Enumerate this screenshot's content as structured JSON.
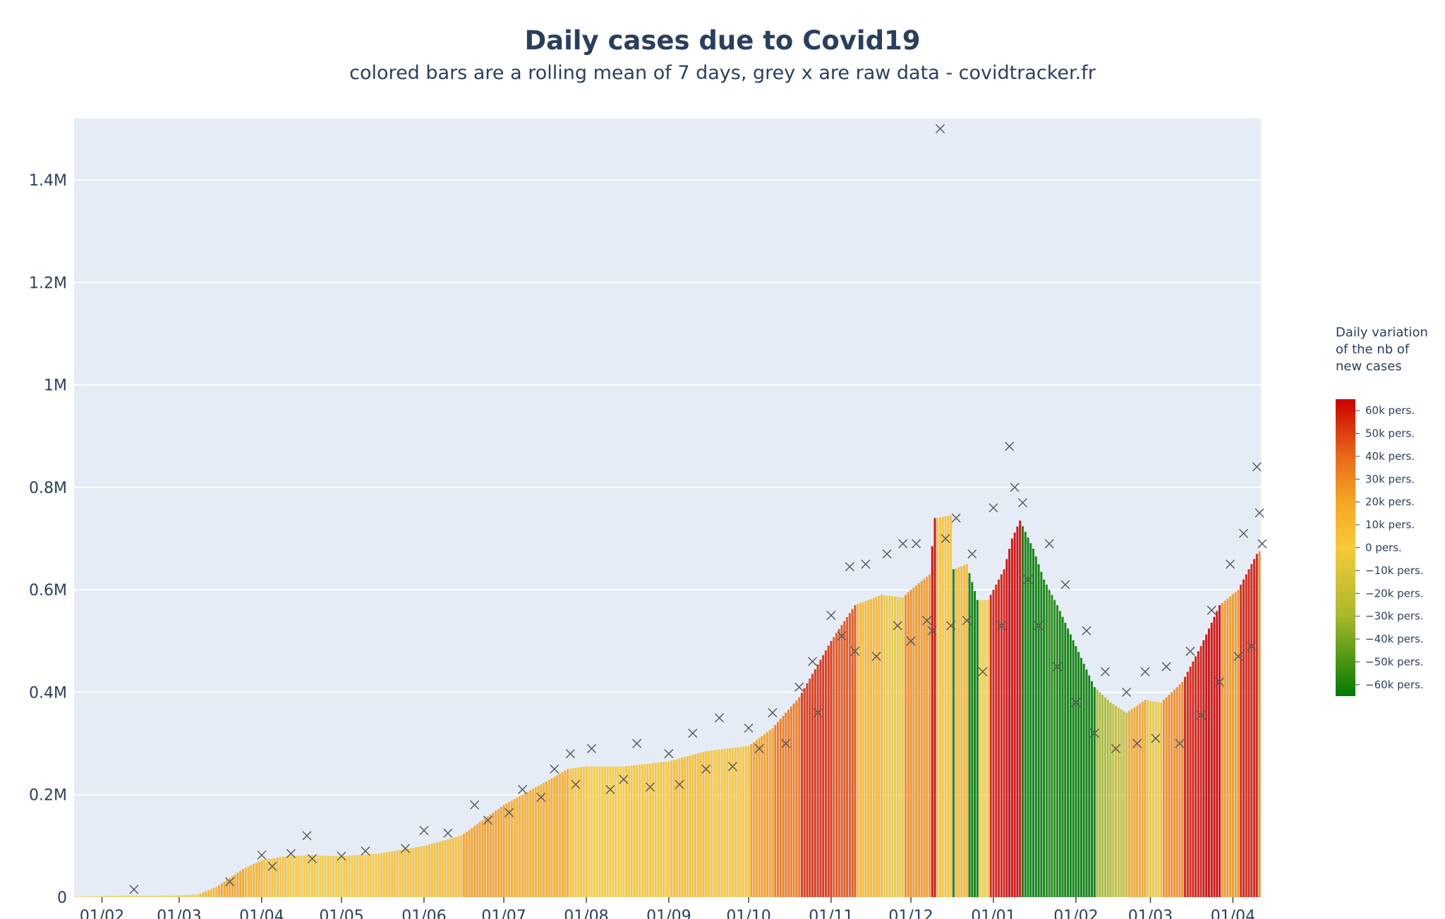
{
  "chart_data": {
    "type": "bar",
    "title": "Daily cases due to Covid19",
    "subtitle": "colored bars are a rolling mean of 7 days, grey x are raw data - covidtracker.fr",
    "xlabel": "",
    "ylabel": "",
    "x_range": [
      "2020-01-22",
      "2021-04-12"
    ],
    "ylim": [
      0,
      1520000
    ],
    "grid": true,
    "y_ticks": [
      0,
      200000,
      400000,
      600000,
      800000,
      1000000,
      1200000,
      1400000
    ],
    "y_tick_labels": [
      "0",
      "0.2M",
      "0.4M",
      "0.6M",
      "0.8M",
      "1M",
      "1.2M",
      "1.4M"
    ],
    "x_ticks": [
      "2020-02-01",
      "2020-03-01",
      "2020-04-01",
      "2020-05-01",
      "2020-06-01",
      "2020-07-01",
      "2020-08-01",
      "2020-09-01",
      "2020-10-01",
      "2020-11-01",
      "2020-12-01",
      "2021-01-01",
      "2021-02-01",
      "2021-03-01",
      "2021-04-01"
    ],
    "x_tick_labels": [
      "01/02",
      "01/03",
      "01/04",
      "01/05",
      "01/06",
      "01/07",
      "01/08",
      "01/09",
      "01/10",
      "01/11",
      "01/12",
      "01/01",
      "01/02",
      "01/03",
      "01/04"
    ],
    "rolling_mean_anchors": [
      [
        "2020-01-22",
        1000
      ],
      [
        "2020-02-10",
        3000
      ],
      [
        "2020-02-20",
        2000
      ],
      [
        "2020-03-08",
        5000
      ],
      [
        "2020-03-15",
        20000
      ],
      [
        "2020-03-25",
        55000
      ],
      [
        "2020-04-01",
        72000
      ],
      [
        "2020-04-10",
        80000
      ],
      [
        "2020-04-20",
        82000
      ],
      [
        "2020-05-01",
        80000
      ],
      [
        "2020-05-15",
        85000
      ],
      [
        "2020-06-01",
        100000
      ],
      [
        "2020-06-15",
        120000
      ],
      [
        "2020-07-01",
        180000
      ],
      [
        "2020-07-15",
        220000
      ],
      [
        "2020-07-25",
        250000
      ],
      [
        "2020-08-01",
        255000
      ],
      [
        "2020-08-15",
        255000
      ],
      [
        "2020-09-01",
        265000
      ],
      [
        "2020-09-15",
        285000
      ],
      [
        "2020-10-01",
        295000
      ],
      [
        "2020-10-10",
        330000
      ],
      [
        "2020-10-20",
        390000
      ],
      [
        "2020-11-01",
        500000
      ],
      [
        "2020-11-10",
        570000
      ],
      [
        "2020-11-20",
        590000
      ],
      [
        "2020-11-28",
        585000
      ],
      [
        "2020-12-01",
        600000
      ],
      [
        "2020-12-08",
        630000
      ],
      [
        "2020-12-10",
        740000
      ],
      [
        "2020-12-16",
        745000
      ],
      [
        "2020-12-17",
        640000
      ],
      [
        "2020-12-22",
        650000
      ],
      [
        "2020-12-26",
        580000
      ],
      [
        "2020-12-30",
        580000
      ],
      [
        "2021-01-05",
        640000
      ],
      [
        "2021-01-08",
        700000
      ],
      [
        "2021-01-11",
        735000
      ],
      [
        "2021-01-16",
        680000
      ],
      [
        "2021-01-20",
        620000
      ],
      [
        "2021-01-25",
        570000
      ],
      [
        "2021-02-01",
        490000
      ],
      [
        "2021-02-08",
        410000
      ],
      [
        "2021-02-14",
        380000
      ],
      [
        "2021-02-20",
        360000
      ],
      [
        "2021-02-27",
        385000
      ],
      [
        "2021-03-05",
        380000
      ],
      [
        "2021-03-13",
        420000
      ],
      [
        "2021-03-20",
        490000
      ],
      [
        "2021-03-27",
        570000
      ],
      [
        "2021-04-03",
        600000
      ],
      [
        "2021-04-10",
        670000
      ],
      [
        "2021-04-11",
        675000
      ]
    ],
    "raw_data_points": [
      [
        "2020-02-13",
        15000
      ],
      [
        "2020-03-20",
        30000
      ],
      [
        "2020-04-01",
        82000
      ],
      [
        "2020-04-05",
        60000
      ],
      [
        "2020-04-12",
        85000
      ],
      [
        "2020-04-18",
        120000
      ],
      [
        "2020-04-20",
        75000
      ],
      [
        "2020-05-01",
        80000
      ],
      [
        "2020-05-10",
        90000
      ],
      [
        "2020-05-25",
        95000
      ],
      [
        "2020-06-01",
        130000
      ],
      [
        "2020-06-10",
        125000
      ],
      [
        "2020-06-20",
        180000
      ],
      [
        "2020-06-25",
        150000
      ],
      [
        "2020-07-03",
        165000
      ],
      [
        "2020-07-08",
        210000
      ],
      [
        "2020-07-15",
        195000
      ],
      [
        "2020-07-20",
        250000
      ],
      [
        "2020-07-26",
        280000
      ],
      [
        "2020-07-28",
        220000
      ],
      [
        "2020-08-03",
        290000
      ],
      [
        "2020-08-10",
        210000
      ],
      [
        "2020-08-15",
        230000
      ],
      [
        "2020-08-20",
        300000
      ],
      [
        "2020-08-25",
        215000
      ],
      [
        "2020-09-01",
        280000
      ],
      [
        "2020-09-05",
        220000
      ],
      [
        "2020-09-10",
        320000
      ],
      [
        "2020-09-15",
        250000
      ],
      [
        "2020-09-20",
        350000
      ],
      [
        "2020-09-25",
        255000
      ],
      [
        "2020-10-01",
        330000
      ],
      [
        "2020-10-05",
        290000
      ],
      [
        "2020-10-10",
        360000
      ],
      [
        "2020-10-15",
        300000
      ],
      [
        "2020-10-20",
        410000
      ],
      [
        "2020-10-25",
        460000
      ],
      [
        "2020-10-27",
        360000
      ],
      [
        "2020-11-01",
        550000
      ],
      [
        "2020-11-05",
        510000
      ],
      [
        "2020-11-08",
        645000
      ],
      [
        "2020-11-10",
        480000
      ],
      [
        "2020-11-14",
        650000
      ],
      [
        "2020-11-18",
        470000
      ],
      [
        "2020-11-22",
        670000
      ],
      [
        "2020-11-26",
        530000
      ],
      [
        "2020-11-28",
        690000
      ],
      [
        "2020-12-01",
        500000
      ],
      [
        "2020-12-03",
        690000
      ],
      [
        "2020-12-07",
        540000
      ],
      [
        "2020-12-09",
        520000
      ],
      [
        "2020-12-12",
        1500000
      ],
      [
        "2020-12-14",
        700000
      ],
      [
        "2020-12-16",
        530000
      ],
      [
        "2020-12-18",
        740000
      ],
      [
        "2020-12-22",
        540000
      ],
      [
        "2020-12-24",
        670000
      ],
      [
        "2020-12-28",
        440000
      ],
      [
        "2021-01-01",
        760000
      ],
      [
        "2021-01-04",
        530000
      ],
      [
        "2021-01-07",
        880000
      ],
      [
        "2021-01-09",
        800000
      ],
      [
        "2021-01-12",
        770000
      ],
      [
        "2021-01-14",
        620000
      ],
      [
        "2021-01-18",
        530000
      ],
      [
        "2021-01-22",
        690000
      ],
      [
        "2021-01-25",
        450000
      ],
      [
        "2021-01-28",
        610000
      ],
      [
        "2021-02-01",
        380000
      ],
      [
        "2021-02-05",
        520000
      ],
      [
        "2021-02-08",
        320000
      ],
      [
        "2021-02-12",
        440000
      ],
      [
        "2021-02-16",
        290000
      ],
      [
        "2021-02-20",
        400000
      ],
      [
        "2021-02-24",
        300000
      ],
      [
        "2021-02-27",
        440000
      ],
      [
        "2021-03-03",
        310000
      ],
      [
        "2021-03-07",
        450000
      ],
      [
        "2021-03-12",
        300000
      ],
      [
        "2021-03-16",
        480000
      ],
      [
        "2021-03-20",
        355000
      ],
      [
        "2021-03-24",
        560000
      ],
      [
        "2021-03-27",
        420000
      ],
      [
        "2021-03-31",
        650000
      ],
      [
        "2021-04-03",
        470000
      ],
      [
        "2021-04-05",
        710000
      ],
      [
        "2021-04-08",
        490000
      ],
      [
        "2021-04-10",
        840000
      ],
      [
        "2021-04-11",
        750000
      ],
      [
        "2021-04-12",
        690000
      ]
    ],
    "colorbar": {
      "title_lines": [
        "Daily variation",
        "of the nb of",
        "new cases"
      ],
      "tick_values": [
        60000,
        50000,
        40000,
        30000,
        20000,
        10000,
        0,
        -10000,
        -20000,
        -30000,
        -40000,
        -50000,
        -60000
      ],
      "tick_labels": [
        "60k pers.",
        "50k pers.",
        "40k pers.",
        "30k pers.",
        "20k pers.",
        "10k pers.",
        "0 pers.",
        "−10k pers.",
        "−20k pers.",
        "−30k pers.",
        "−40k pers.",
        "−50k pers.",
        "−60k pers."
      ],
      "range": [
        -65000,
        65000
      ],
      "colors": {
        "max": "#cc0000",
        "high": "#e86a1a",
        "mid_high": "#f5a623",
        "zero": "#f7ca3a",
        "low": "#a8b82c",
        "min": "#007a00"
      }
    },
    "colors": {
      "plot_bg": "#e5ecf6",
      "grid": "#ffffff",
      "raw_marker": "#555555",
      "text": "#2a3f5f"
    }
  }
}
